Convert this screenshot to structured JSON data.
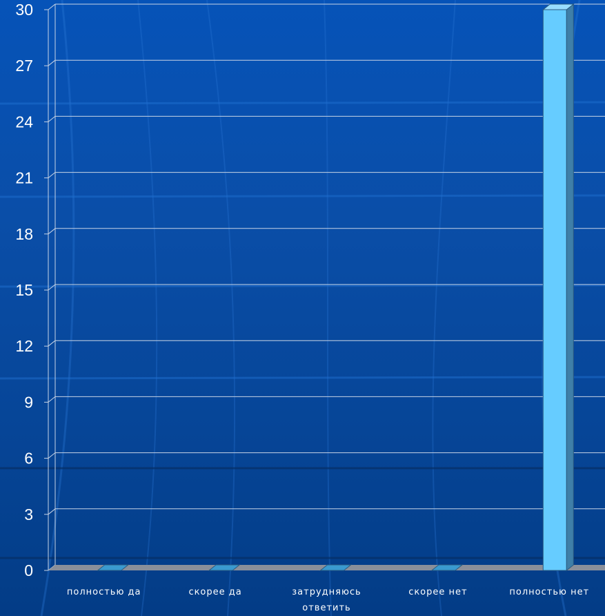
{
  "chart_data": {
    "type": "bar",
    "categories": [
      [
        "полностью да"
      ],
      [
        "скорее да"
      ],
      [
        "затрудняюсь",
        "ответить"
      ],
      [
        "скорее нет"
      ],
      [
        "полностью нет"
      ]
    ],
    "values": [
      0,
      0,
      0,
      0,
      30
    ],
    "ylim": [
      0,
      30
    ],
    "yticks": [
      0,
      3,
      6,
      9,
      12,
      15,
      18,
      21,
      24,
      27,
      30
    ],
    "grid": true,
    "three_d": true
  },
  "colors": {
    "background": "#0650b0",
    "bar_front": "#66ccff",
    "bar_top": "#99ddff",
    "bar_side": "#3f7fa8",
    "floor": "#8a8f9a",
    "grid": "#c8d4e6"
  }
}
